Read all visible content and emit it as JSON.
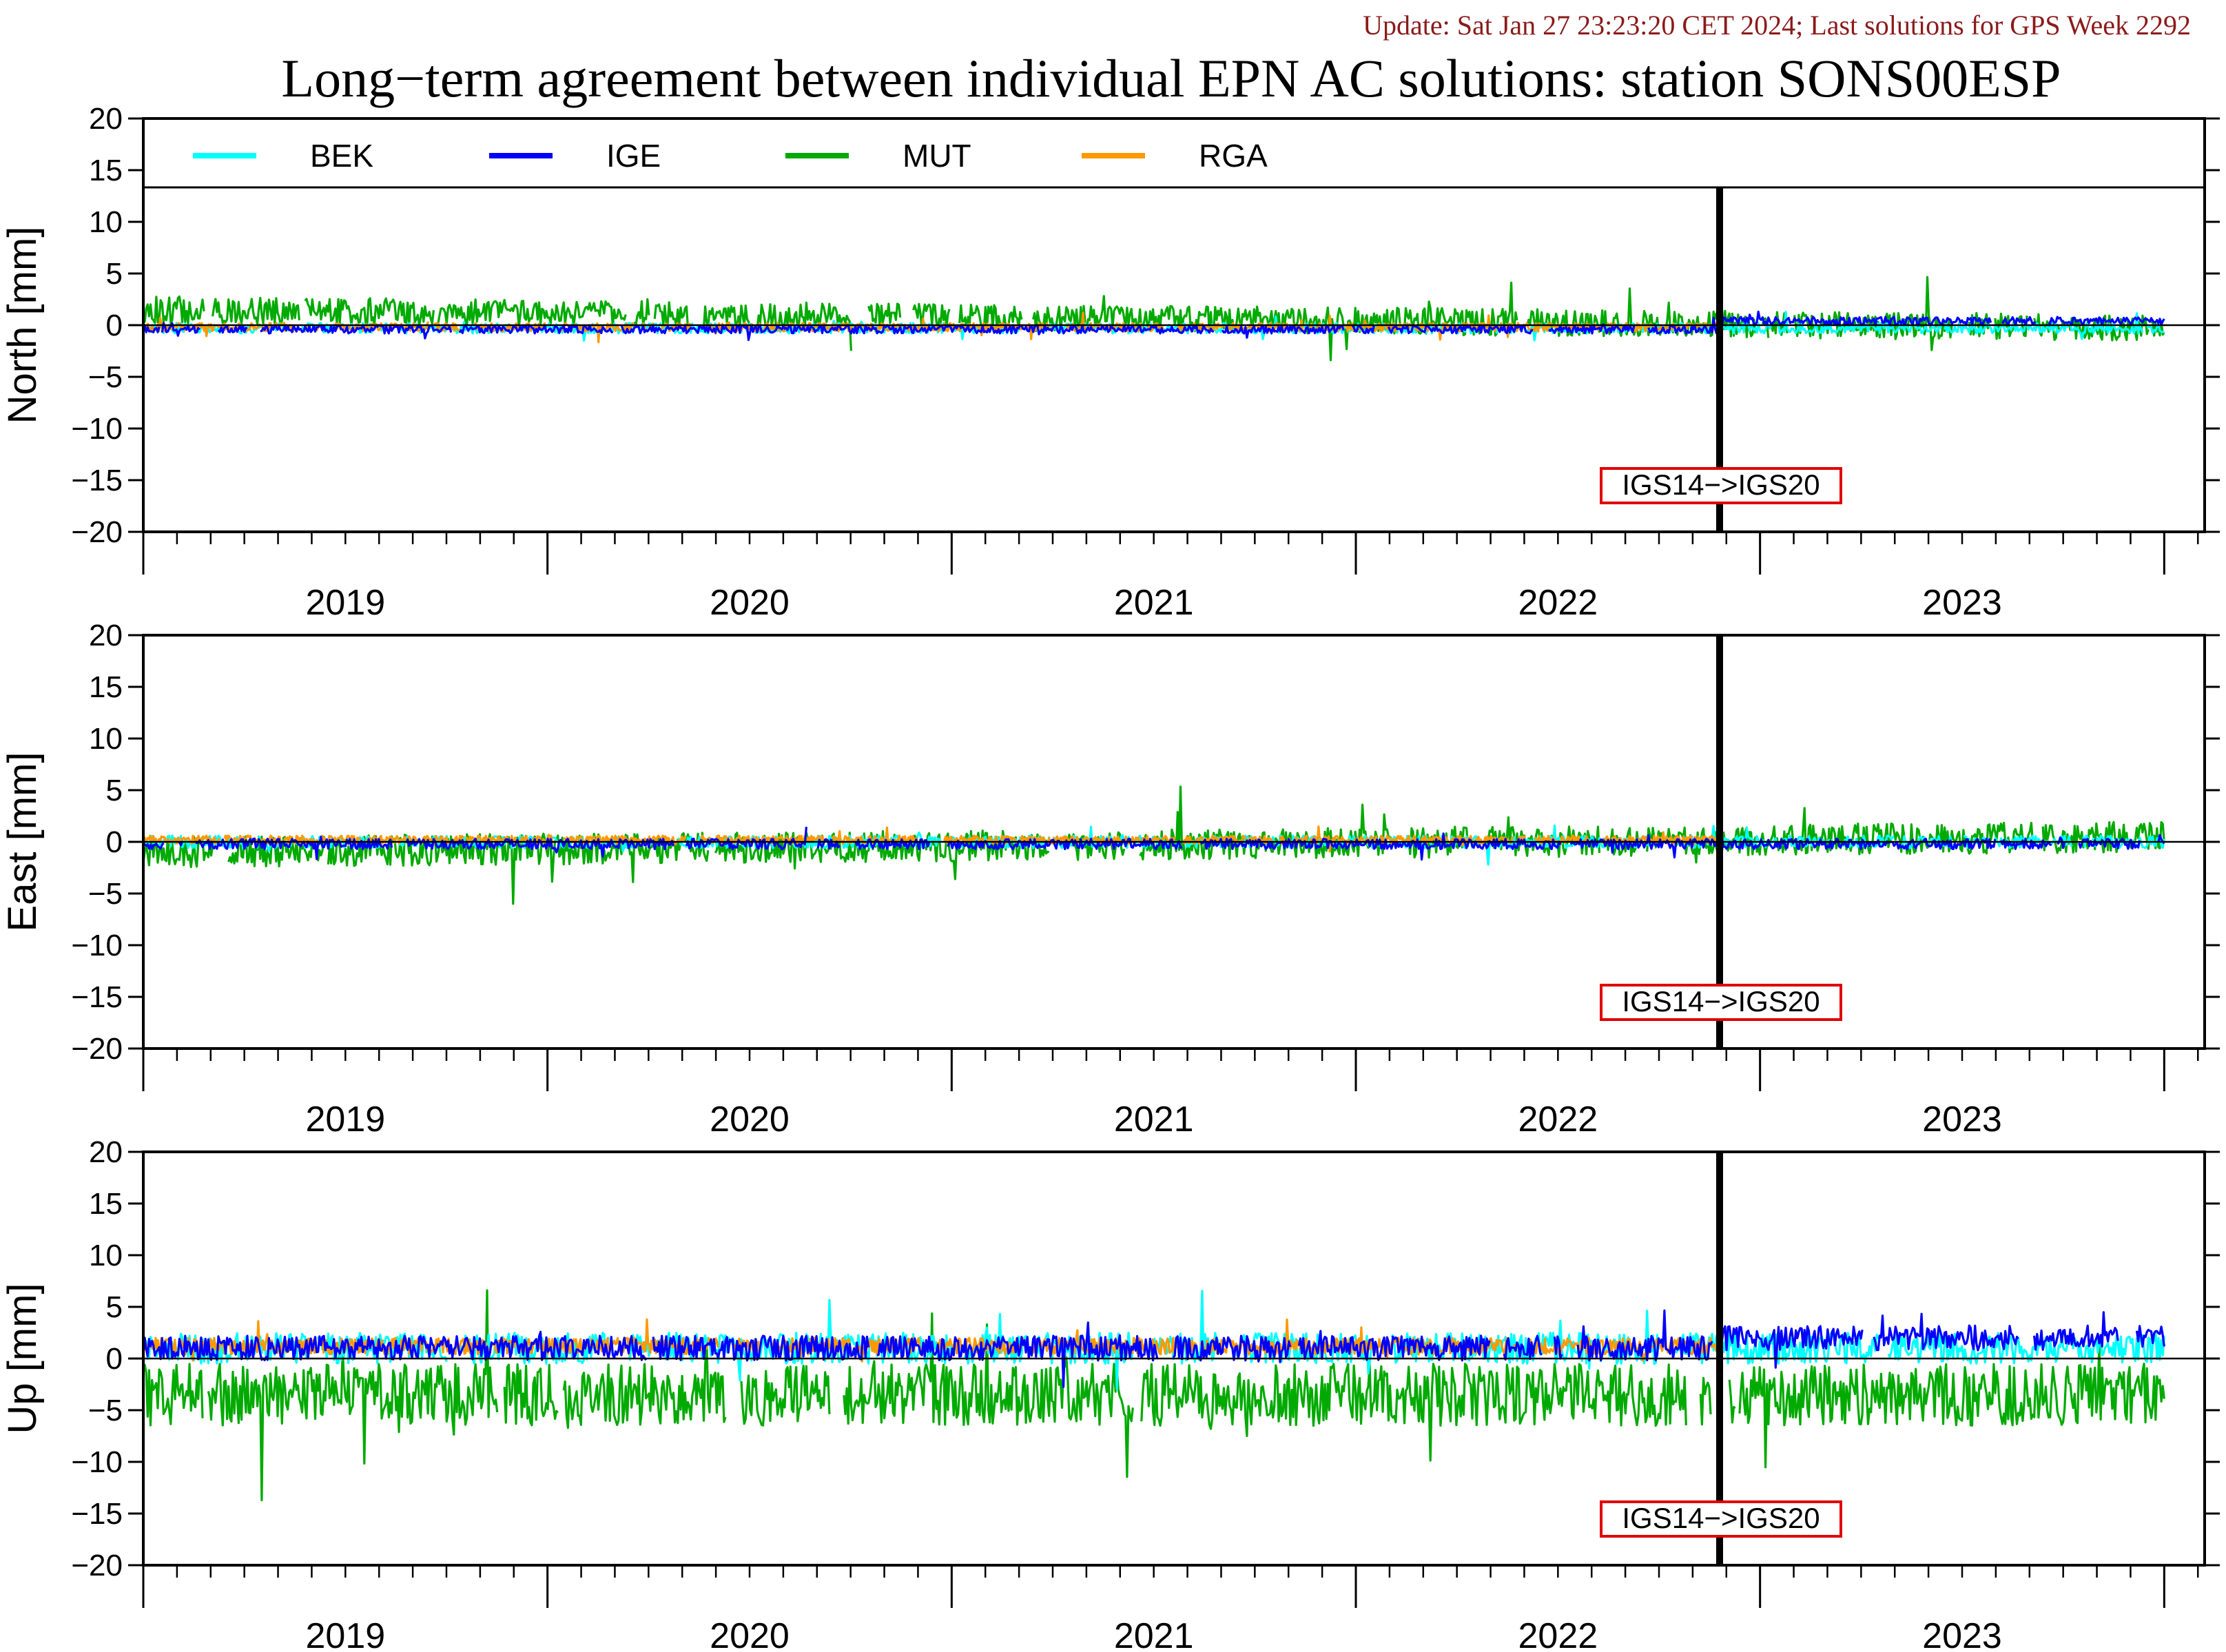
{
  "header": {
    "update_text": "Update: Sat Jan 27 23:23:20 CET 2024; Last solutions for GPS Week 2292",
    "title": "Long−term agreement between individual EPN AC solutions: station SONS00ESP"
  },
  "chart_data": {
    "type": "line",
    "x_range": [
      2018.5,
      2023.6
    ],
    "year_labels": [
      "2019",
      "2020",
      "2021",
      "2022",
      "2023"
    ],
    "reference_change": {
      "x": 2022.4,
      "label": "IGS14−>IGS20"
    },
    "colors": {
      "BEK": "#00ffff",
      "IGE": "#0000ff",
      "MUT": "#00aa00",
      "RGA": "#ff9900"
    },
    "legend": {
      "placement": "top",
      "entries": [
        "BEK",
        "IGE",
        "MUT",
        "RGA"
      ]
    },
    "panels": [
      {
        "ylabel": "North [mm]",
        "ylim": [
          -20,
          20
        ],
        "yticks": [
          "20",
          "15",
          "10",
          "5",
          "0",
          "−5",
          "−10",
          "−15",
          "−20"
        ],
        "series": [
          {
            "name": "BEK",
            "x_range": [
              2018.5,
              2023.5
            ],
            "mean": -0.3,
            "spread": 0.5
          },
          {
            "name": "IGE",
            "x_range": [
              2018.5,
              2023.5
            ],
            "mean_before": -0.4,
            "mean_after": 0.4,
            "spread": 0.4
          },
          {
            "name": "MUT",
            "x_range": [
              2018.5,
              2023.5
            ],
            "mean_start": 1.5,
            "mean_end": -0.3,
            "spread": 1.3
          },
          {
            "name": "RGA",
            "x_range": [
              2018.5,
              2022.4
            ],
            "mean": -0.2,
            "spread": 0.4
          }
        ]
      },
      {
        "ylabel": "East [mm]",
        "ylim": [
          -20,
          20
        ],
        "yticks": [
          "20",
          "15",
          "10",
          "5",
          "0",
          "−5",
          "−10",
          "−15",
          "−20"
        ],
        "series": [
          {
            "name": "BEK",
            "x_range": [
              2018.5,
              2023.5
            ],
            "mean": 0.0,
            "spread": 0.6
          },
          {
            "name": "IGE",
            "x_range": [
              2018.5,
              2023.5
            ],
            "mean": -0.2,
            "spread": 0.5
          },
          {
            "name": "MUT",
            "x_range": [
              2018.5,
              2023.5
            ],
            "mean_start": -1.0,
            "mean_end": 0.5,
            "spread": 1.5
          },
          {
            "name": "RGA",
            "x_range": [
              2018.5,
              2022.4
            ],
            "mean": 0.2,
            "spread": 0.4
          }
        ]
      },
      {
        "ylabel": "Up [mm]",
        "ylim": [
          -20,
          20
        ],
        "yticks": [
          "20",
          "15",
          "10",
          "5",
          "0",
          "−5",
          "−10",
          "−15",
          "−20"
        ],
        "series": [
          {
            "name": "BEK",
            "x_range": [
              2018.5,
              2023.5
            ],
            "mean": 1.0,
            "spread": 1.5
          },
          {
            "name": "IGE",
            "x_range": [
              2018.5,
              2023.5
            ],
            "mean_before": 1.0,
            "mean_after": 2.0,
            "spread": 1.2
          },
          {
            "name": "MUT",
            "x_range": [
              2018.5,
              2023.5
            ],
            "mean": -3.5,
            "spread": 3.0
          },
          {
            "name": "RGA",
            "x_range": [
              2018.5,
              2022.4
            ],
            "mean": 1.2,
            "spread": 0.8
          }
        ]
      }
    ]
  }
}
